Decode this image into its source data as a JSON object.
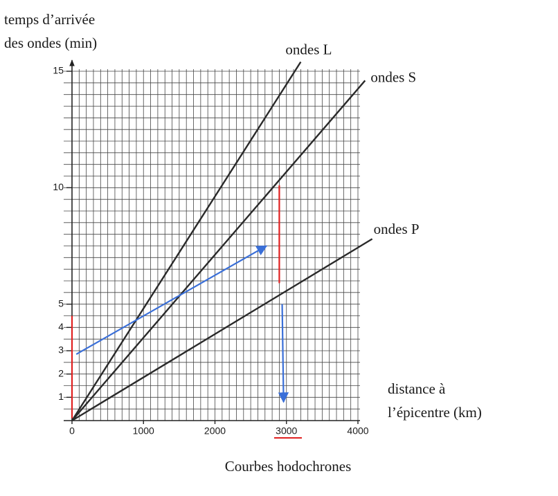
{
  "chart_data": {
    "type": "line",
    "ylabel": [
      "temps d’arrivée",
      "des ondes (min)"
    ],
    "xlabel": [
      "distance à",
      "l’épicentre (km)"
    ],
    "caption": "Courbes hodochrones",
    "xlim": [
      0,
      4000
    ],
    "ylim": [
      0,
      15
    ],
    "xticks": [
      0,
      1000,
      2000,
      3000,
      4000
    ],
    "yticks": [
      1,
      2,
      3,
      4,
      5,
      10,
      15
    ],
    "grid": true,
    "minor_grid": {
      "x": 100,
      "y": 0.5
    },
    "series": [
      {
        "name": "ondes L",
        "color": "#2a2a2a",
        "x": [
          0,
          3200
        ],
        "values": [
          0,
          15.4
        ]
      },
      {
        "name": "ondes S",
        "color": "#2a2a2a",
        "x": [
          0,
          4100
        ],
        "values": [
          0,
          14.6
        ]
      },
      {
        "name": "ondes P",
        "color": "#2a2a2a",
        "x": [
          0,
          4200
        ],
        "values": [
          0,
          7.8
        ]
      }
    ],
    "annotations": [
      {
        "color": "#e02020",
        "arrow": false,
        "x": [
          0,
          0
        ],
        "values": [
          0.1,
          4.5
        ]
      },
      {
        "color": "#e02020",
        "arrow": false,
        "x": [
          2900,
          2900
        ],
        "values": [
          5.9,
          10.1
        ]
      },
      {
        "color": "#3a6fd8",
        "arrow": true,
        "x": [
          60,
          2720
        ],
        "values": [
          2.85,
          7.5
        ]
      },
      {
        "color": "#3a6fd8",
        "arrow": true,
        "x": [
          2940,
          2960
        ],
        "values": [
          5.0,
          0.8
        ]
      }
    ]
  }
}
